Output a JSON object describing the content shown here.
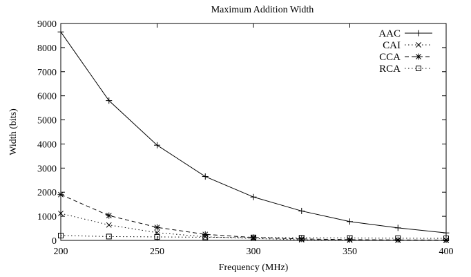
{
  "chart_data": {
    "type": "line",
    "title": "Maximum Addition Width",
    "xlabel": "Frequency (MHz)",
    "ylabel": "Width (bits)",
    "x": [
      200,
      225,
      250,
      275,
      300,
      325,
      350,
      375,
      400
    ],
    "xlim": [
      200,
      400
    ],
    "ylim": [
      0,
      9000
    ],
    "xticks": [
      200,
      250,
      300,
      350,
      400
    ],
    "yticks": [
      0,
      1000,
      2000,
      3000,
      4000,
      5000,
      6000,
      7000,
      8000,
      9000
    ],
    "grid": false,
    "legend_position": "top-right",
    "series": [
      {
        "name": "AAC",
        "line": "solid",
        "marker": "plus",
        "values": [
          8650,
          5800,
          3950,
          2650,
          1800,
          1220,
          780,
          520,
          310
        ]
      },
      {
        "name": "CAI",
        "line": "dotted",
        "marker": "x",
        "values": [
          1120,
          640,
          320,
          150,
          80,
          25,
          10,
          5,
          0
        ]
      },
      {
        "name": "CCA",
        "line": "dashed",
        "marker": "star",
        "values": [
          1900,
          1030,
          540,
          250,
          120,
          60,
          30,
          20,
          15
        ]
      },
      {
        "name": "RCA",
        "line": "dotted",
        "marker": "square",
        "values": [
          200,
          160,
          145,
          130,
          120,
          110,
          100,
          90,
          85
        ]
      }
    ]
  }
}
